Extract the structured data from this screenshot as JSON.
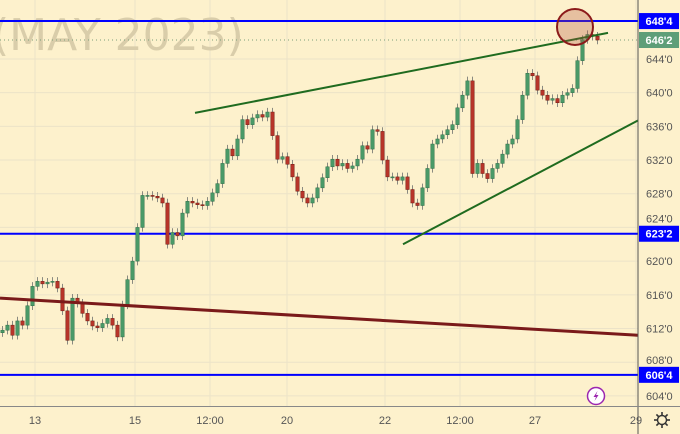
{
  "watermark": "(MAY 2023)",
  "chart_data": {
    "type": "candlestick",
    "title": "",
    "price_axis_ticks": [
      {
        "value": 644,
        "label": "644'0"
      },
      {
        "value": 640,
        "label": "640'0"
      },
      {
        "value": 636,
        "label": "636'0"
      },
      {
        "value": 632,
        "label": "632'0"
      },
      {
        "value": 628,
        "label": "628'0"
      },
      {
        "value": 624,
        "label": "624'0"
      },
      {
        "value": 620,
        "label": "620'0"
      },
      {
        "value": 616,
        "label": "616'0"
      },
      {
        "value": 612,
        "label": "612'0"
      },
      {
        "value": 608,
        "label": "608'0"
      },
      {
        "value": 604,
        "label": "604'0"
      }
    ],
    "ylim": [
      602.8,
      651
    ],
    "time_axis_ticks": [
      {
        "bar": 7,
        "label": "13"
      },
      {
        "bar": 27,
        "label": "15"
      },
      {
        "bar": 42,
        "label": "12:00"
      },
      {
        "bar": 57.4,
        "label": "20"
      },
      {
        "bar": 77,
        "label": "22"
      },
      {
        "bar": 92,
        "label": "12:00"
      },
      {
        "bar": 107,
        "label": "27"
      },
      {
        "bar": 127.2,
        "label": "29"
      }
    ],
    "bars_visible": 127.6,
    "grid": true,
    "first_open": 611.5,
    "closes": [
      611.8,
      612.4,
      611.2,
      612.9,
      612.4,
      614.7,
      617.0,
      617.6,
      617.3,
      617.5,
      617.6,
      616.8,
      614.1,
      610.6,
      615.6,
      615.0,
      613.8,
      612.9,
      612.3,
      612.1,
      612.6,
      613.2,
      612.4,
      611.0,
      614.8,
      617.8,
      620.0,
      624.0,
      627.8,
      627.8,
      627.7,
      627.5,
      626.9,
      622.0,
      623.4,
      623.0,
      625.7,
      627.1,
      626.9,
      626.7,
      626.6,
      627.1,
      628.1,
      629.2,
      631.6,
      633.3,
      632.5,
      634.5,
      636.8,
      636.2,
      637.0,
      637.4,
      637.1,
      637.7,
      634.9,
      632.1,
      632.4,
      631.5,
      630.0,
      628.3,
      627.5,
      626.9,
      627.5,
      628.7,
      629.9,
      631.2,
      632.1,
      631.3,
      631.6,
      631.0,
      631.3,
      632.1,
      633.7,
      633.3,
      635.6,
      635.4,
      632.0,
      630.0,
      630.0,
      629.6,
      630.0,
      628.5,
      626.9,
      626.6,
      628.7,
      631.0,
      633.9,
      634.5,
      635.0,
      635.6,
      636.2,
      638.2,
      639.7,
      641.4,
      630.4,
      631.6,
      630.4,
      629.8,
      631.0,
      631.6,
      632.7,
      633.9,
      634.5,
      636.8,
      639.7,
      642.3,
      642.0,
      640.3,
      639.7,
      639.1,
      639.3,
      638.8,
      639.7,
      640.0,
      640.5,
      643.8,
      646.3,
      646.9,
      646.7,
      646.25
    ],
    "colors": {
      "up": "#4a9a68",
      "down": "#b8352a",
      "wick": "#8a8a80",
      "background": "#fdf1cc",
      "grid": "#ece3c8"
    },
    "horizontal_levels": [
      {
        "value": 648.5,
        "label": "648'4",
        "color": "#0000ff"
      },
      {
        "value": 623.25,
        "label": "623'2",
        "color": "#0000ff"
      },
      {
        "value": 606.5,
        "label": "606'4",
        "color": "#0000ff"
      }
    ],
    "last_price": {
      "value": 646.25,
      "label": "646'2",
      "color": "#5e9e78"
    },
    "trendlines": [
      {
        "name": "upper-resistance",
        "color": "#1f6b1f",
        "from": [
          39,
          637.6
        ],
        "to": [
          121.6,
          647.1
        ]
      },
      {
        "name": "lower-support",
        "color": "#1f6b1f",
        "from": [
          80.6,
          622.0
        ],
        "to": [
          127.6,
          636.7
        ]
      },
      {
        "name": "long-term",
        "color": "#7a1a1a",
        "from": [
          0,
          615.6
        ],
        "to": [
          127.6,
          611.2
        ]
      }
    ],
    "highlight_circle": {
      "bar": 115,
      "price": 647.8,
      "color": "#8b1a1a"
    }
  },
  "icons": {
    "alert": "lightning-icon",
    "settings": "gear-icon"
  }
}
